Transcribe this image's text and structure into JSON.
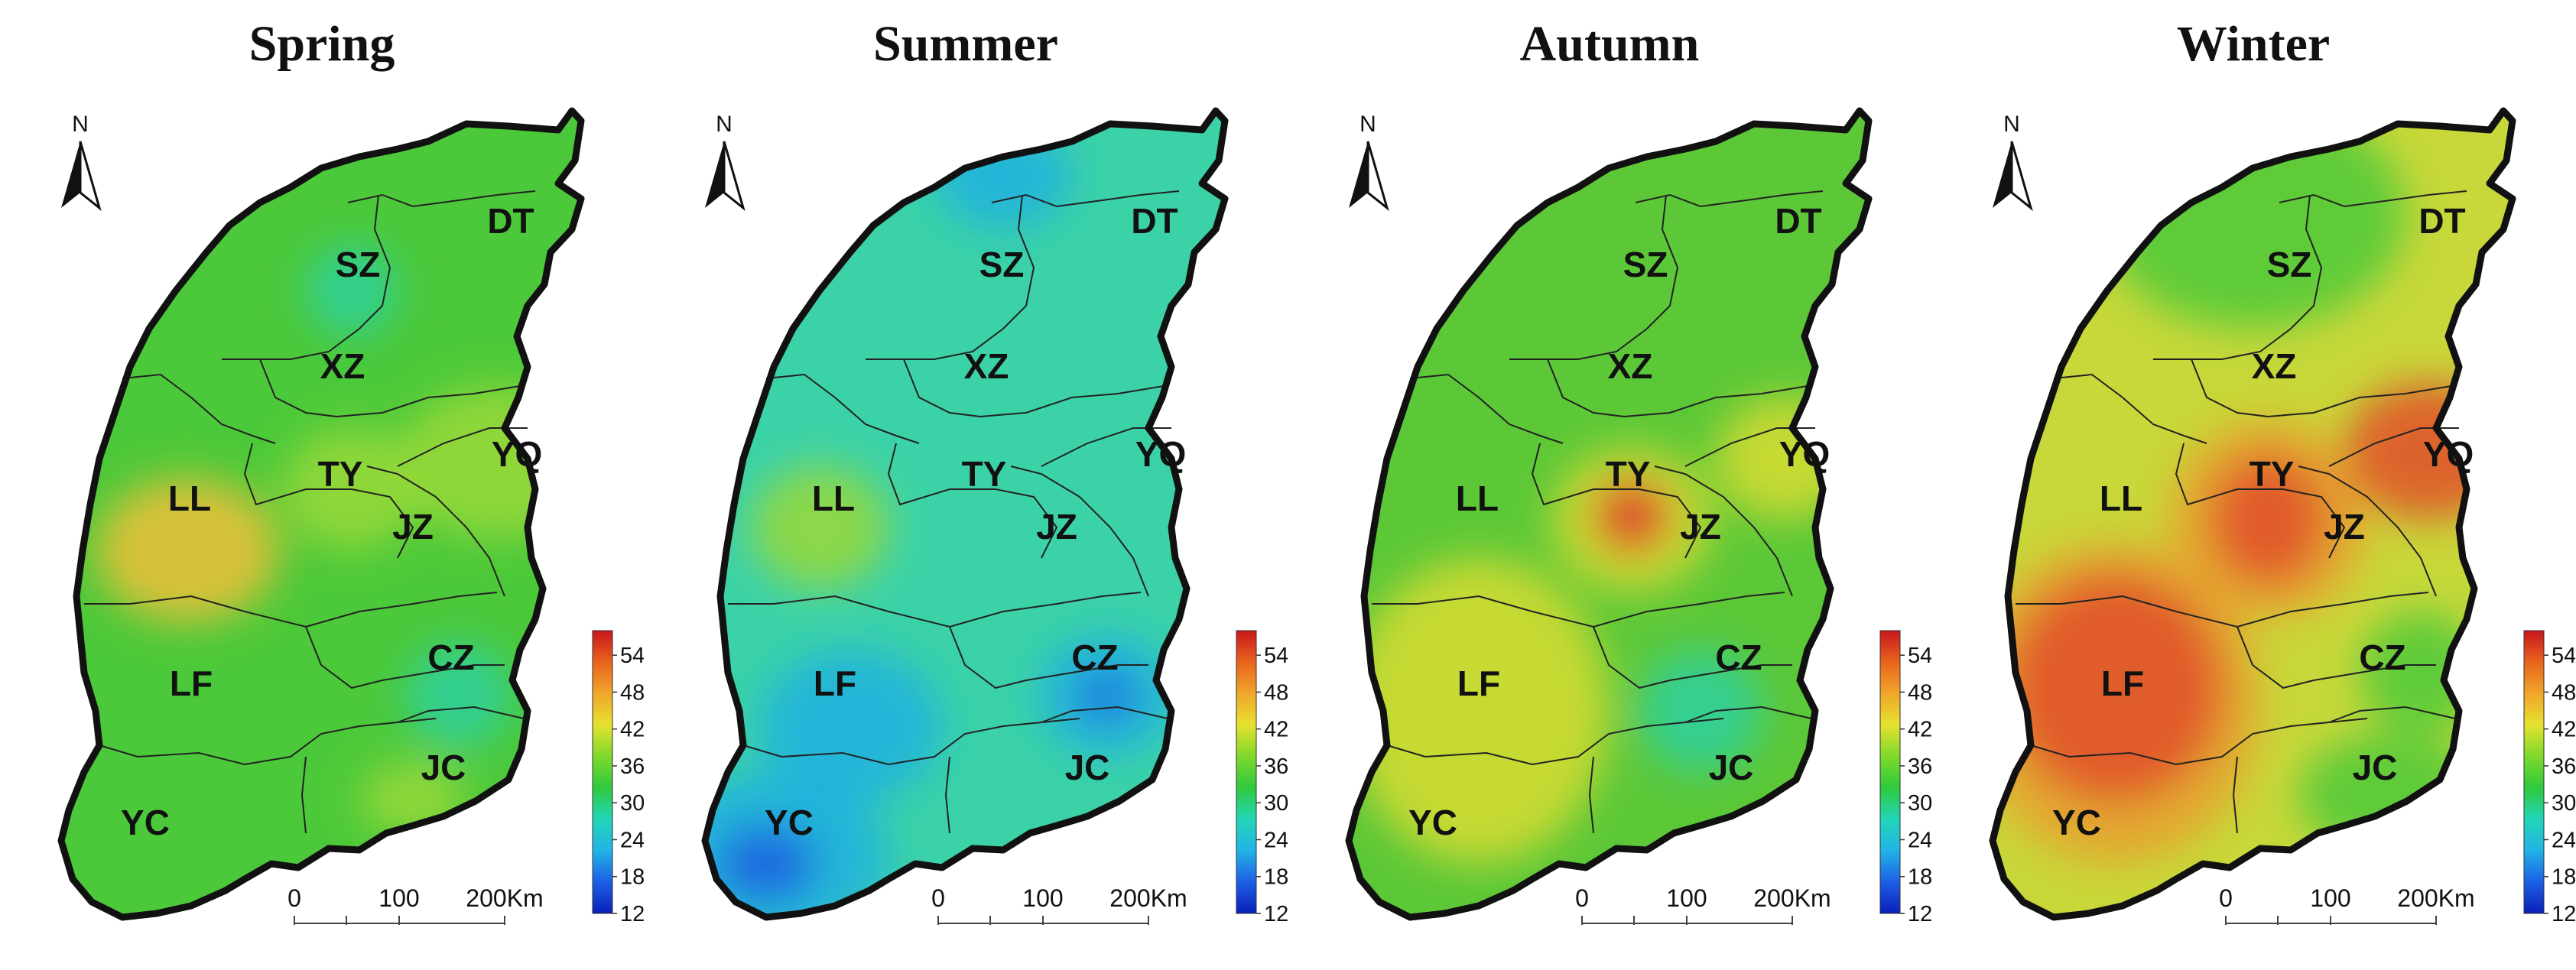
{
  "panels": [
    {
      "title": "Spring",
      "palette": "spring"
    },
    {
      "title": "Summer",
      "palette": "summer"
    },
    {
      "title": "Autumn",
      "palette": "autumn"
    },
    {
      "title": "Winter",
      "palette": "winter"
    }
  ],
  "north_label": "N",
  "regions": [
    "DT",
    "SZ",
    "XZ",
    "YQ",
    "TY",
    "LL",
    "JZ",
    "LF",
    "CZ",
    "JC",
    "YC"
  ],
  "scale_bar": {
    "labels": [
      "0",
      "100",
      "200Km"
    ]
  },
  "legend": {
    "ticks": [
      "54",
      "48",
      "42",
      "36",
      "30",
      "24",
      "18",
      "12"
    ],
    "range": [
      12,
      58
    ],
    "colors": [
      "#0a1fb8",
      "#1d5fe6",
      "#22b3e6",
      "#22d6b8",
      "#2fc93d",
      "#7ed92b",
      "#e6e12e",
      "#f0a62a",
      "#e8641e",
      "#c8161d"
    ]
  },
  "season_colors": {
    "spring": {
      "base": "#4cc93a",
      "spots": [
        "#9bd93a",
        "#f0c03a",
        "#2fd0a0"
      ]
    },
    "summer": {
      "base": "#3cd2a8",
      "spots": [
        "#1e5fe0",
        "#22b0e0",
        "#9ad83a"
      ]
    },
    "autumn": {
      "base": "#5cc838",
      "spots": [
        "#e0362a",
        "#d9dc34",
        "#2fd0a0"
      ]
    },
    "winter": {
      "base": "#c8d83a",
      "spots": [
        "#e0502a",
        "#e8a030",
        "#4cc93a"
      ]
    }
  }
}
